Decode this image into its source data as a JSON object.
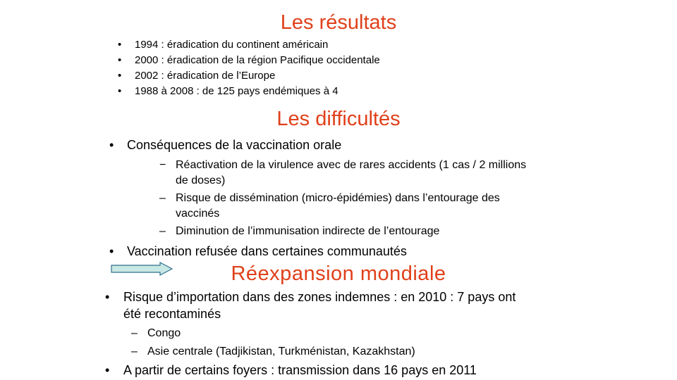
{
  "section_results": {
    "title": "Les résultats",
    "items": [
      "1994 : éradication du continent américain",
      "2000 : éradication de la région Pacifique occidentale",
      "2002 : éradication de l’Europe",
      "1988 à 2008  : de 125 pays endémiques à 4"
    ]
  },
  "section_difficulties": {
    "title": "Les difficultés",
    "item1": "Conséquences de la vaccination orale",
    "sub_items": [
      {
        "bullet": "−",
        "line1": "Réactivation de la virulence avec de rares accidents (1 cas / 2 millions",
        "line2": "de doses)"
      },
      {
        "bullet": "–",
        "line1": "Risque de dissémination (micro-épidémies) dans l’entourage des",
        "line2": "vaccinés"
      },
      {
        "bullet": "–",
        "line1": "Diminution de l’immunisation indirecte de l’entourage",
        "line2": ""
      }
    ],
    "item2": "Vaccination refusée dans certaines communautés"
  },
  "section_reexpansion": {
    "title": "Réexpansion mondiale",
    "item1_line1": "Risque d’importation dans des zones indemnes  : en 2010 : 7 pays ont",
    "item1_line2": "été recontaminés",
    "sub_items": [
      "Congo",
      "Asie centrale (Tadjikistan, Turkménistan, Kazakhstan)"
    ],
    "item2": "A partir de certains foyers : transmission dans 16 pays en 2011"
  },
  "bullets": {
    "dot": "•",
    "dash": "–"
  },
  "colors": {
    "heading": "#e0401a",
    "arrow_fill": "#c8e8e4",
    "arrow_stroke": "#2f6f8f"
  },
  "icons": {
    "arrow": "right-arrow-icon"
  }
}
